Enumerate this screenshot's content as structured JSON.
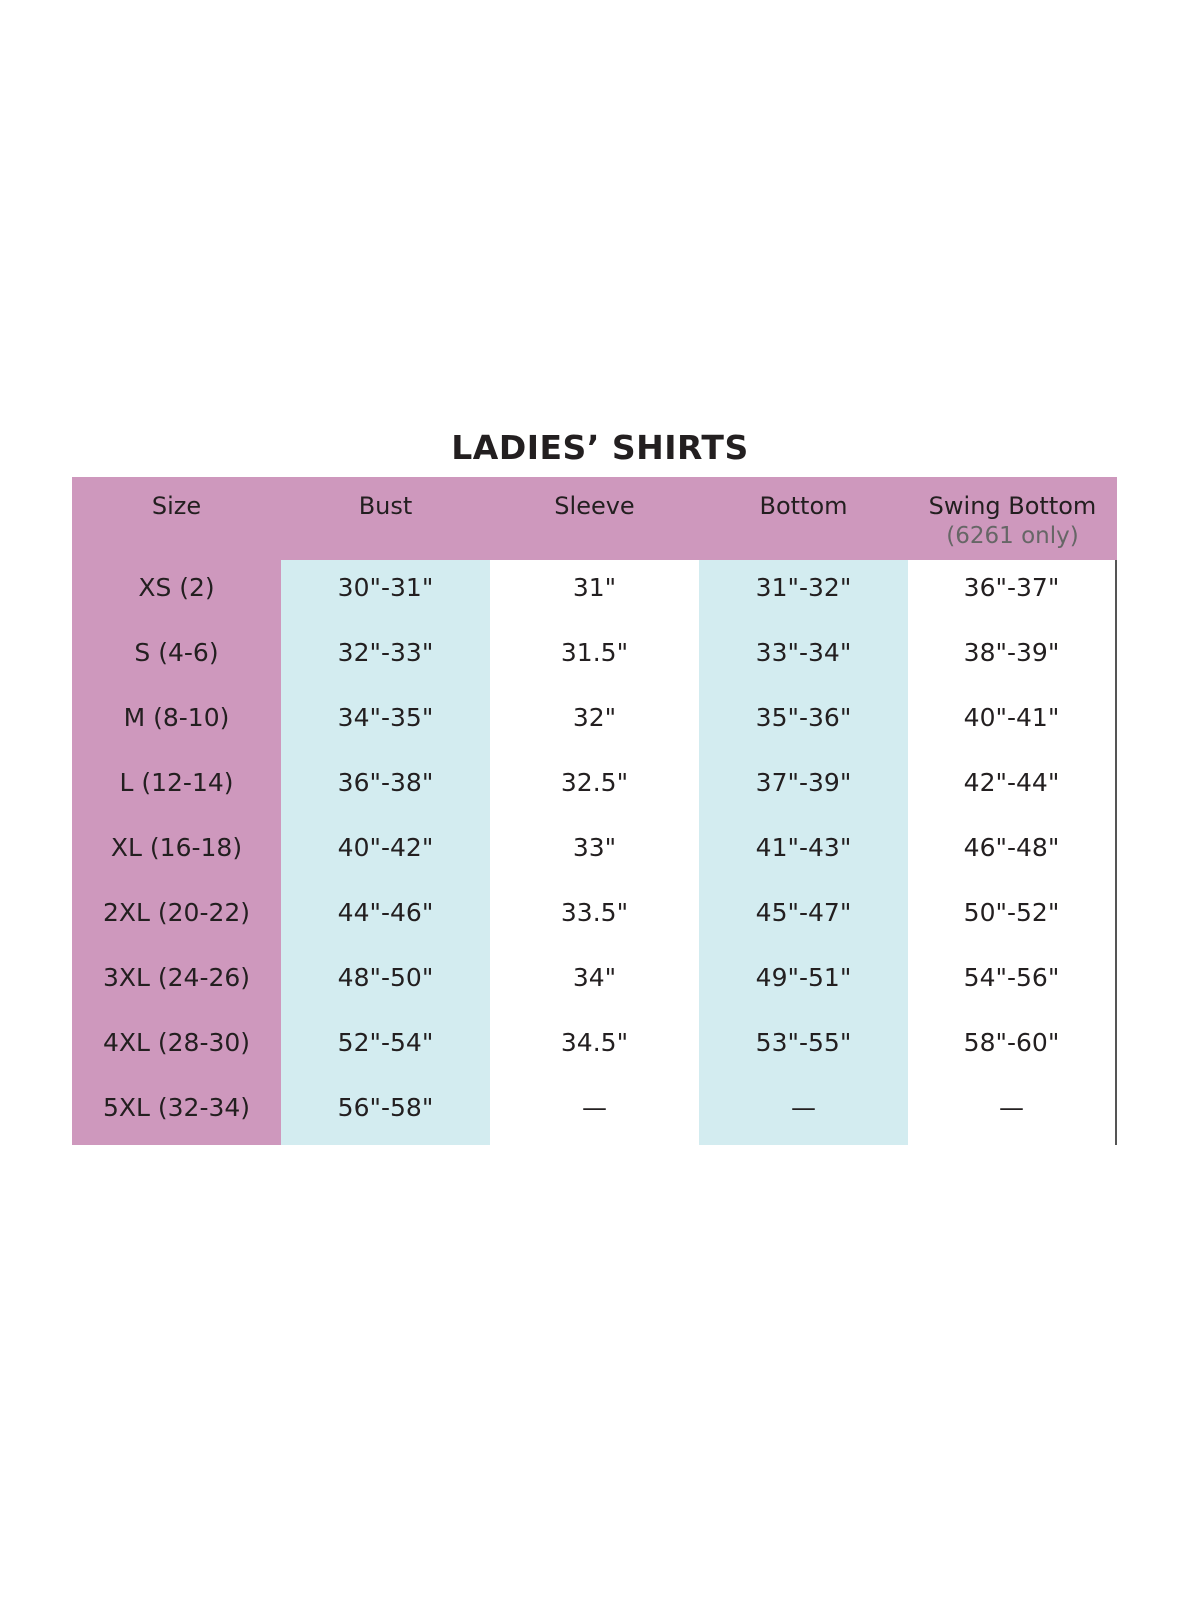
{
  "title": "LADIES’ SHIRTS",
  "colors": {
    "header": "#ce98bd",
    "band": "#d3ecf0",
    "text": "#231f20"
  },
  "columns": [
    {
      "label": "Size",
      "sub": ""
    },
    {
      "label": "Bust",
      "sub": ""
    },
    {
      "label": "Sleeve",
      "sub": ""
    },
    {
      "label": "Bottom",
      "sub": ""
    },
    {
      "label": "Swing Bottom",
      "sub": "(6261 only)"
    }
  ],
  "rows": [
    [
      "XS (2)",
      "30\"-31\"",
      "31\"",
      "31\"-32\"",
      "36\"-37\""
    ],
    [
      "S (4-6)",
      "32\"-33\"",
      "31.5\"",
      "33\"-34\"",
      "38\"-39\""
    ],
    [
      "M (8-10)",
      "34\"-35\"",
      "32\"",
      "35\"-36\"",
      "40\"-41\""
    ],
    [
      "L (12-14)",
      "36\"-38\"",
      "32.5\"",
      "37\"-39\"",
      "42\"-44\""
    ],
    [
      "XL (16-18)",
      "40\"-42\"",
      "33\"",
      "41\"-43\"",
      "46\"-48\""
    ],
    [
      "2XL (20-22)",
      "44\"-46\"",
      "33.5\"",
      "45\"-47\"",
      "50\"-52\""
    ],
    [
      "3XL (24-26)",
      "48\"-50\"",
      "34\"",
      "49\"-51\"",
      "54\"-56\""
    ],
    [
      "4XL (28-30)",
      "52\"-54\"",
      "34.5\"",
      "53\"-55\"",
      "58\"-60\""
    ],
    [
      "5XL (32-34)",
      "56\"-58\"",
      "—",
      "—",
      "—"
    ]
  ]
}
